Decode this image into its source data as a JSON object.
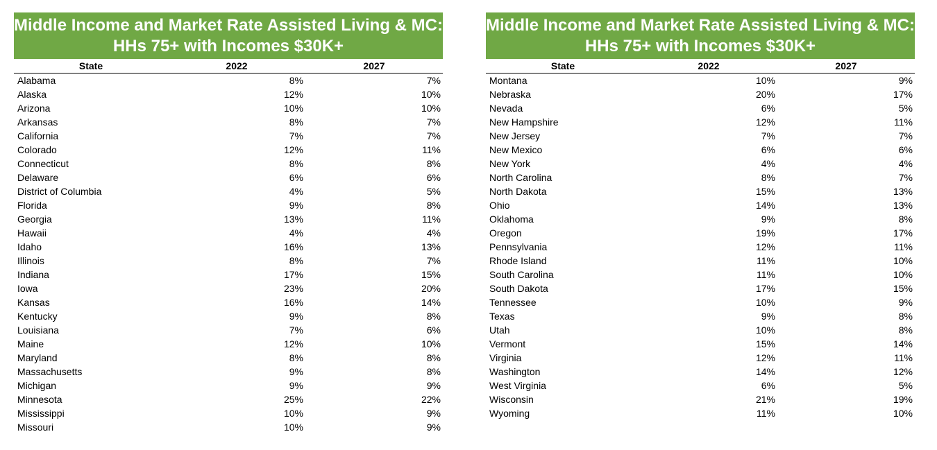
{
  "title_line1": "Middle Income and Market Rate Assisted Living & MC:",
  "title_line2": "HHs 75+ with Incomes $30K+",
  "header_color": "#70a845",
  "columns": [
    "State",
    "2022",
    "2027"
  ],
  "left_rows": [
    [
      "Alabama",
      "8%",
      "7%"
    ],
    [
      "Alaska",
      "12%",
      "10%"
    ],
    [
      "Arizona",
      "10%",
      "10%"
    ],
    [
      "Arkansas",
      "8%",
      "7%"
    ],
    [
      "California",
      "7%",
      "7%"
    ],
    [
      "Colorado",
      "12%",
      "11%"
    ],
    [
      "Connecticut",
      "8%",
      "8%"
    ],
    [
      "Delaware",
      "6%",
      "6%"
    ],
    [
      "District of Columbia",
      "4%",
      "5%"
    ],
    [
      "Florida",
      "9%",
      "8%"
    ],
    [
      "Georgia",
      "13%",
      "11%"
    ],
    [
      "Hawaii",
      "4%",
      "4%"
    ],
    [
      "Idaho",
      "16%",
      "13%"
    ],
    [
      "Illinois",
      "8%",
      "7%"
    ],
    [
      "Indiana",
      "17%",
      "15%"
    ],
    [
      "Iowa",
      "23%",
      "20%"
    ],
    [
      "Kansas",
      "16%",
      "14%"
    ],
    [
      "Kentucky",
      "9%",
      "8%"
    ],
    [
      "Louisiana",
      "7%",
      "6%"
    ],
    [
      "Maine",
      "12%",
      "10%"
    ],
    [
      "Maryland",
      "8%",
      "8%"
    ],
    [
      "Massachusetts",
      "9%",
      "8%"
    ],
    [
      "Michigan",
      "9%",
      "9%"
    ],
    [
      "Minnesota",
      "25%",
      "22%"
    ],
    [
      "Mississippi",
      "10%",
      "9%"
    ],
    [
      "Missouri",
      "10%",
      "9%"
    ]
  ],
  "right_rows": [
    [
      "Montana",
      "10%",
      "9%"
    ],
    [
      "Nebraska",
      "20%",
      "17%"
    ],
    [
      "Nevada",
      "6%",
      "5%"
    ],
    [
      "New Hampshire",
      "12%",
      "11%"
    ],
    [
      "New Jersey",
      "7%",
      "7%"
    ],
    [
      "New Mexico",
      "6%",
      "6%"
    ],
    [
      "New York",
      "4%",
      "4%"
    ],
    [
      "North Carolina",
      "8%",
      "7%"
    ],
    [
      "North Dakota",
      "15%",
      "13%"
    ],
    [
      "Ohio",
      "14%",
      "13%"
    ],
    [
      "Oklahoma",
      "9%",
      "8%"
    ],
    [
      "Oregon",
      "19%",
      "17%"
    ],
    [
      "Pennsylvania",
      "12%",
      "11%"
    ],
    [
      "Rhode Island",
      "11%",
      "10%"
    ],
    [
      "South Carolina",
      "11%",
      "10%"
    ],
    [
      "South Dakota",
      "17%",
      "15%"
    ],
    [
      "Tennessee",
      "10%",
      "9%"
    ],
    [
      "Texas",
      "9%",
      "8%"
    ],
    [
      "Utah",
      "10%",
      "8%"
    ],
    [
      "Vermont",
      "15%",
      "14%"
    ],
    [
      "Virginia",
      "12%",
      "11%"
    ],
    [
      "Washington",
      "14%",
      "12%"
    ],
    [
      "West Virginia",
      "6%",
      "5%"
    ],
    [
      "Wisconsin",
      "21%",
      "19%"
    ],
    [
      "Wyoming",
      "11%",
      "10%"
    ]
  ]
}
